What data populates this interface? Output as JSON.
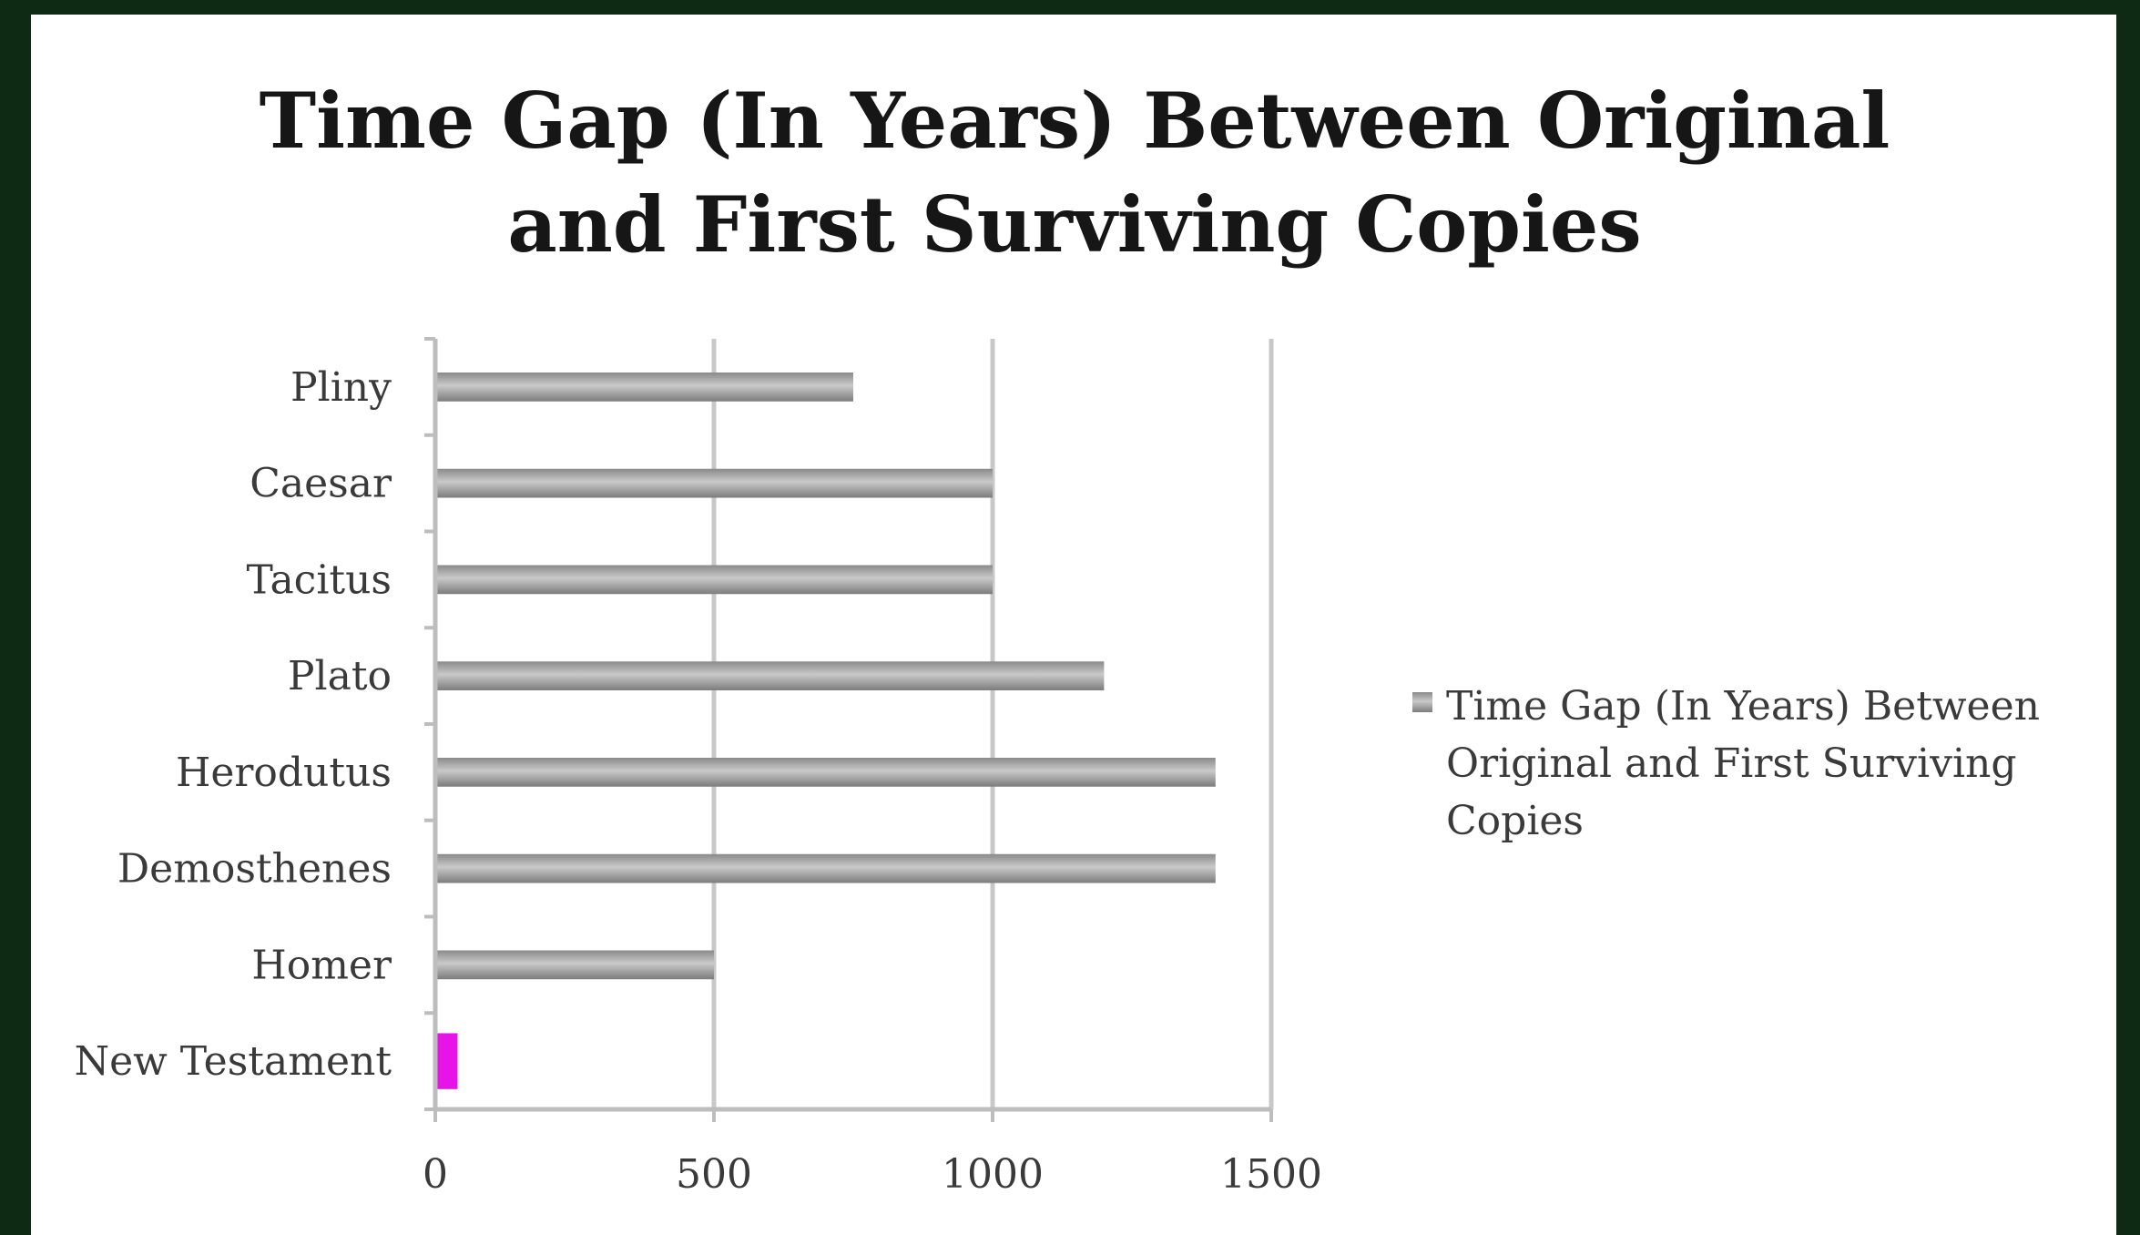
{
  "chart_data": {
    "type": "bar",
    "orientation": "horizontal",
    "title_lines": [
      "Time Gap (In Years) Between Original",
      "and First Surviving Copies"
    ],
    "categories": [
      "Pliny",
      "Caesar",
      "Tacitus",
      "Plato",
      "Herodutus",
      "Demosthenes",
      "Homer",
      "New Testament"
    ],
    "series": [
      {
        "name": "Time Gap (In Years) Between Original and First Surviving Copies",
        "values": [
          750,
          1000,
          1000,
          1200,
          1400,
          1400,
          500,
          40
        ]
      }
    ],
    "highlight": {
      "category": "New Testament",
      "color": "#e614e6"
    },
    "xlim": [
      0,
      1500
    ],
    "xticks": [
      "0",
      "500",
      "1000",
      "1500"
    ],
    "grid": true,
    "legend_position": "right",
    "legend_lines": [
      "Time Gap (In Years) Between",
      "Original and First Surviving",
      "Copies"
    ],
    "colors": {
      "bar": "#9e9e9e",
      "grid": "#c8c8c8",
      "axis": "#bdbdbd"
    }
  }
}
